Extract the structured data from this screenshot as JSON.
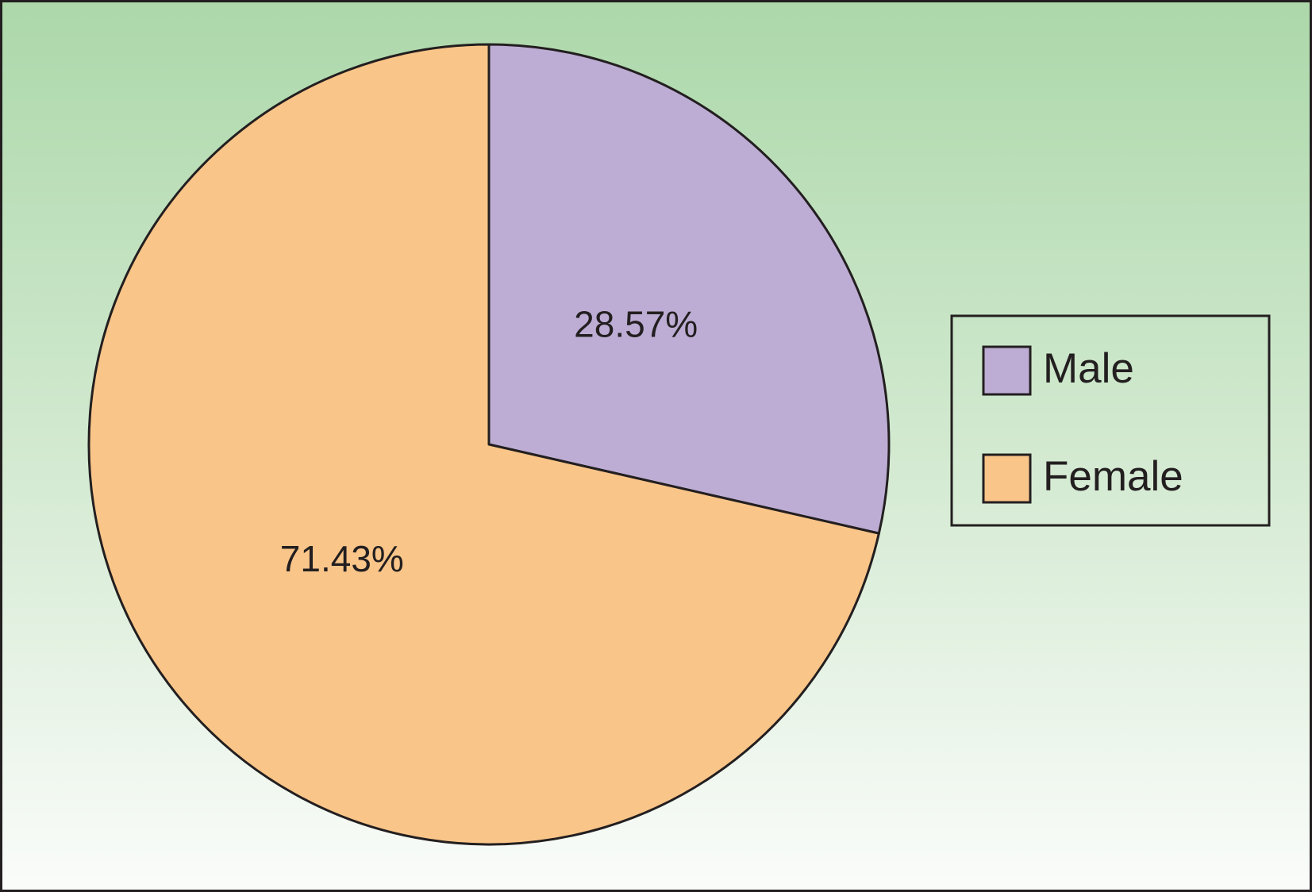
{
  "chart_data": {
    "type": "pie",
    "categories": [
      "Male",
      "Female"
    ],
    "values": [
      28.57,
      71.43
    ],
    "value_labels": [
      "28.57%",
      "71.43%"
    ],
    "colors": [
      "#bdadd4",
      "#fac589"
    ],
    "legend": "right"
  }
}
